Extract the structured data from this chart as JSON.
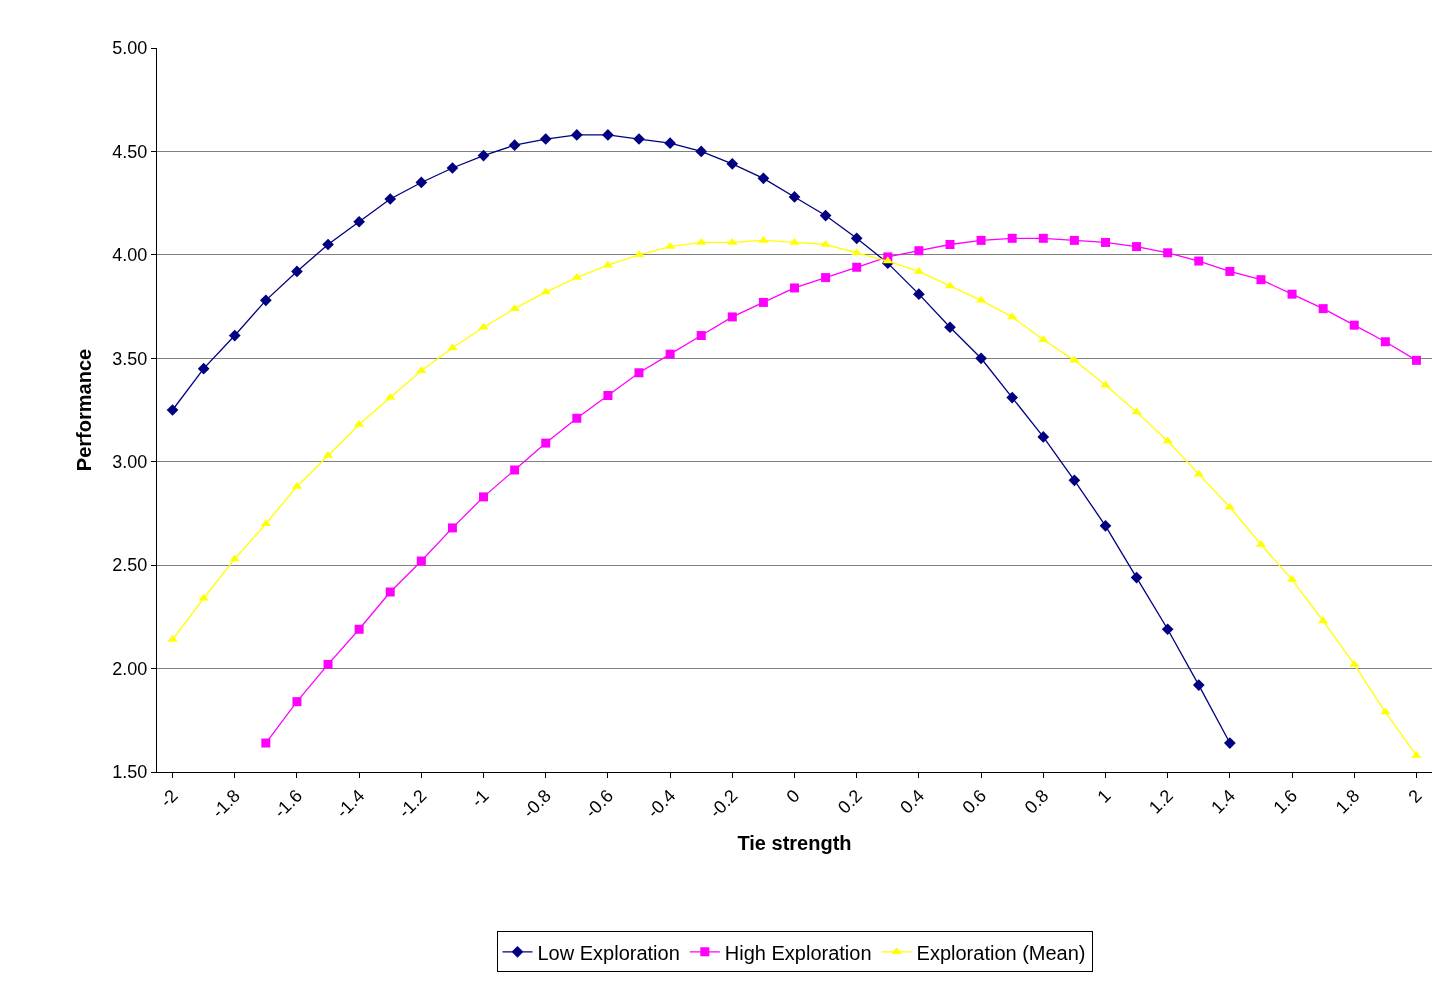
{
  "chart_data": {
    "type": "line",
    "xlabel": "Tie strength",
    "ylabel": "Performance",
    "x": [
      -2,
      -1.9,
      -1.8,
      -1.7,
      -1.6,
      -1.5,
      -1.4,
      -1.3,
      -1.2,
      -1.1,
      -1,
      -0.9,
      -0.8,
      -0.7,
      -0.6,
      -0.5,
      -0.4,
      -0.3,
      -0.2,
      -0.1,
      0,
      0.1,
      0.2,
      0.3,
      0.4,
      0.5,
      0.6,
      0.7,
      0.8,
      0.9,
      1,
      1.1,
      1.2,
      1.3,
      1.4,
      1.5,
      1.6,
      1.7,
      1.8,
      1.9,
      2
    ],
    "series": [
      {
        "name": "Low Exploration",
        "color": "#000080",
        "marker": "diamond",
        "values": [
          3.25,
          3.45,
          3.61,
          3.78,
          3.92,
          4.05,
          4.16,
          4.27,
          4.35,
          4.42,
          4.48,
          4.53,
          4.56,
          4.58,
          4.58,
          4.56,
          4.54,
          4.5,
          4.44,
          4.37,
          4.28,
          4.19,
          4.08,
          3.96,
          3.81,
          3.65,
          3.5,
          3.31,
          3.12,
          2.91,
          2.69,
          2.44,
          2.19,
          1.92,
          1.64,
          null,
          null,
          null,
          null,
          null,
          null
        ]
      },
      {
        "name": "High Exploration",
        "color": "#ff00ff",
        "marker": "square",
        "values": [
          null,
          null,
          null,
          1.64,
          1.84,
          2.02,
          2.19,
          2.37,
          2.52,
          2.68,
          2.83,
          2.96,
          3.09,
          3.21,
          3.32,
          3.43,
          3.52,
          3.61,
          3.7,
          3.77,
          3.84,
          3.89,
          3.94,
          3.99,
          4.02,
          4.05,
          4.07,
          4.08,
          4.08,
          4.07,
          4.06,
          4.04,
          4.01,
          3.97,
          3.92,
          3.88,
          3.81,
          3.74,
          3.66,
          3.58,
          3.49
        ]
      },
      {
        "name": "Exploration (Mean)",
        "color": "#ffff00",
        "marker": "triangle",
        "values": [
          2.14,
          2.34,
          2.53,
          2.7,
          2.88,
          3.03,
          3.18,
          3.31,
          3.44,
          3.55,
          3.65,
          3.74,
          3.82,
          3.89,
          3.95,
          4.0,
          4.04,
          4.06,
          4.06,
          4.07,
          4.06,
          4.05,
          4.01,
          3.97,
          3.92,
          3.85,
          3.78,
          3.7,
          3.59,
          3.49,
          3.37,
          3.24,
          3.1,
          2.94,
          2.78,
          2.6,
          2.43,
          2.23,
          2.02,
          1.79,
          1.58
        ]
      }
    ],
    "xlim": [
      -2.05,
      2.05
    ],
    "xticks": [
      -2,
      -1.8,
      -1.6,
      -1.4,
      -1.2,
      -1,
      -0.8,
      -0.6,
      -0.4,
      -0.2,
      0,
      0.2,
      0.4,
      0.6,
      0.8,
      1,
      1.2,
      1.4,
      1.6,
      1.8,
      2
    ],
    "ylim": [
      1.5,
      5
    ],
    "yticks": [
      {
        "value": 1.5,
        "label": "1.50"
      },
      {
        "value": 2,
        "label": "2.00"
      },
      {
        "value": 2.5,
        "label": "2.50"
      },
      {
        "value": 3,
        "label": "3.00"
      },
      {
        "value": 3.5,
        "label": "3.50"
      },
      {
        "value": 4,
        "label": "4.00"
      },
      {
        "value": 4.5,
        "label": "4.50"
      },
      {
        "value": 5,
        "label": "5.00"
      }
    ],
    "grid": "y",
    "legend": "bottom",
    "line_style": "solid"
  }
}
